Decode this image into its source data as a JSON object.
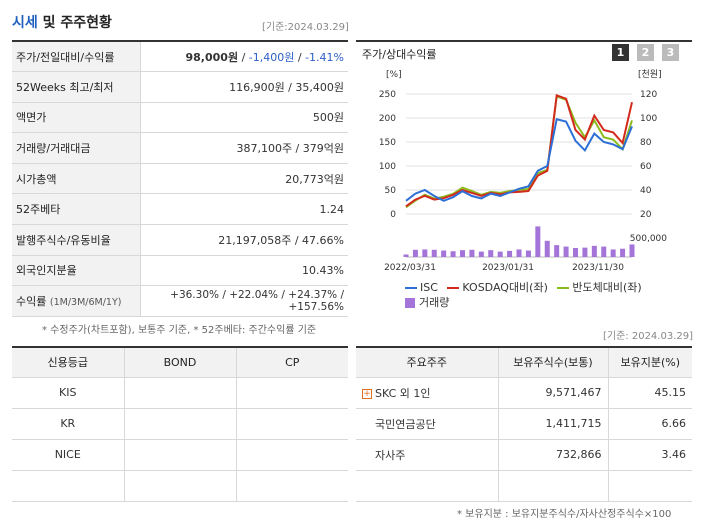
{
  "header": {
    "title_accent": "시세",
    "title_rest": " 및 주주현황",
    "ref_date": "[기준:2024.03.29]"
  },
  "summary": [
    {
      "label": "주가/전일대비/수익률",
      "price": "98,000원",
      "sep1": " / ",
      "change": "-1,400원",
      "sep2": " / ",
      "rate": "-1.41%"
    },
    {
      "label": "52Weeks 최고/최저",
      "value": "116,900원 / 35,400원"
    },
    {
      "label": "액면가",
      "value": "500원"
    },
    {
      "label": "거래량/거래대금",
      "value": "387,100주 / 379억원"
    },
    {
      "label": "시가총액",
      "value": "20,773억원"
    },
    {
      "label": "52주베타",
      "value": "1.24"
    },
    {
      "label": "발행주식수/유동비율",
      "value": "21,197,058주 / 47.66%"
    },
    {
      "label": "외국인지분율",
      "value": "10.43%"
    },
    {
      "label": "수익률",
      "label_sub": "(1M/3M/6M/1Y)",
      "returns": [
        "+36.30%",
        "+22.04%",
        "+24.37%",
        "+157.56%"
      ]
    }
  ],
  "summary_footnote": "* 수정주가(차트포함), 보통주 기준, * 52주베타: 주간수익률 기준",
  "chart": {
    "title": "주가/상대수익률",
    "pages": [
      "1",
      "2",
      "3"
    ],
    "active_page": "1",
    "page_colors": [
      "#333333",
      "#bbbbbb",
      "#bbbbbb"
    ],
    "left_unit": "[%]",
    "right_unit": "[천원]",
    "left_ticks": [
      "250",
      "200",
      "150",
      "100",
      "50",
      "0"
    ],
    "right_ticks": [
      "120",
      "100",
      "80",
      "60",
      "40",
      "20"
    ],
    "volume_tick": "500,000",
    "x_labels": [
      "2022/03/31",
      "2023/01/31",
      "2023/11/30"
    ],
    "legend": {
      "isc": "ISC",
      "kosdaq": "KOSDAQ대비(좌)",
      "semi": "반도체대비(좌)",
      "volume": "거래량"
    },
    "colors": {
      "isc": "#2d6fd6",
      "kosdaq": "#d42a1e",
      "semi": "#8cbb1e",
      "volume": "#a574d8"
    }
  },
  "chart_data": {
    "type": "line",
    "ylim_left": [
      0,
      250
    ],
    "ylim_right": [
      20,
      120
    ],
    "series": [
      {
        "name": "ISC",
        "axis": "right",
        "values": [
          31,
          37,
          40,
          35,
          31,
          34,
          39,
          35,
          33,
          37,
          35,
          38,
          41,
          43,
          56,
          60,
          99,
          97,
          81,
          73,
          87,
          80,
          78,
          74,
          93
        ]
      },
      {
        "name": "KOSDAQ대비(좌)",
        "axis": "left",
        "values": [
          16,
          30,
          38,
          30,
          33,
          40,
          50,
          44,
          38,
          44,
          41,
          45,
          46,
          48,
          80,
          90,
          247,
          240,
          175,
          155,
          205,
          175,
          170,
          148,
          233
        ]
      },
      {
        "name": "반도체대비(좌)",
        "axis": "left",
        "values": [
          14,
          28,
          40,
          32,
          36,
          42,
          55,
          48,
          40,
          46,
          44,
          48,
          50,
          52,
          85,
          92,
          245,
          238,
          190,
          160,
          195,
          160,
          155,
          135,
          195
        ]
      }
    ],
    "volume": [
      70000,
      200000,
      210000,
      200000,
      180000,
      160000,
      190000,
      200000,
      150000,
      190000,
      150000,
      170000,
      210000,
      180000,
      850000,
      450000,
      330000,
      290000,
      250000,
      260000,
      310000,
      290000,
      210000,
      230000,
      350000
    ],
    "volume_max": 1000000
  },
  "chart_ref_date": "[기준: 2024.03.29]",
  "credit": {
    "headers": [
      "신용등급",
      "BOND",
      "CP"
    ],
    "rows": [
      [
        "KIS",
        "",
        ""
      ],
      [
        "KR",
        "",
        ""
      ],
      [
        "NICE",
        "",
        ""
      ],
      [
        "",
        "",
        ""
      ]
    ]
  },
  "holders": {
    "headers": [
      "주요주주",
      "보유주식수(보통)",
      "보유지분(%)"
    ],
    "rows": [
      {
        "name": "SKC 외 1인",
        "shares": "9,571,467",
        "pct": "45.15",
        "expand": true
      },
      {
        "name": "국민연금공단",
        "shares": "1,411,715",
        "pct": "6.66",
        "expand": false
      },
      {
        "name": "자사주",
        "shares": "732,866",
        "pct": "3.46",
        "expand": false
      }
    ],
    "footnote": "* 보유지분 : 보유지분주식수/자사산정주식수×100"
  }
}
